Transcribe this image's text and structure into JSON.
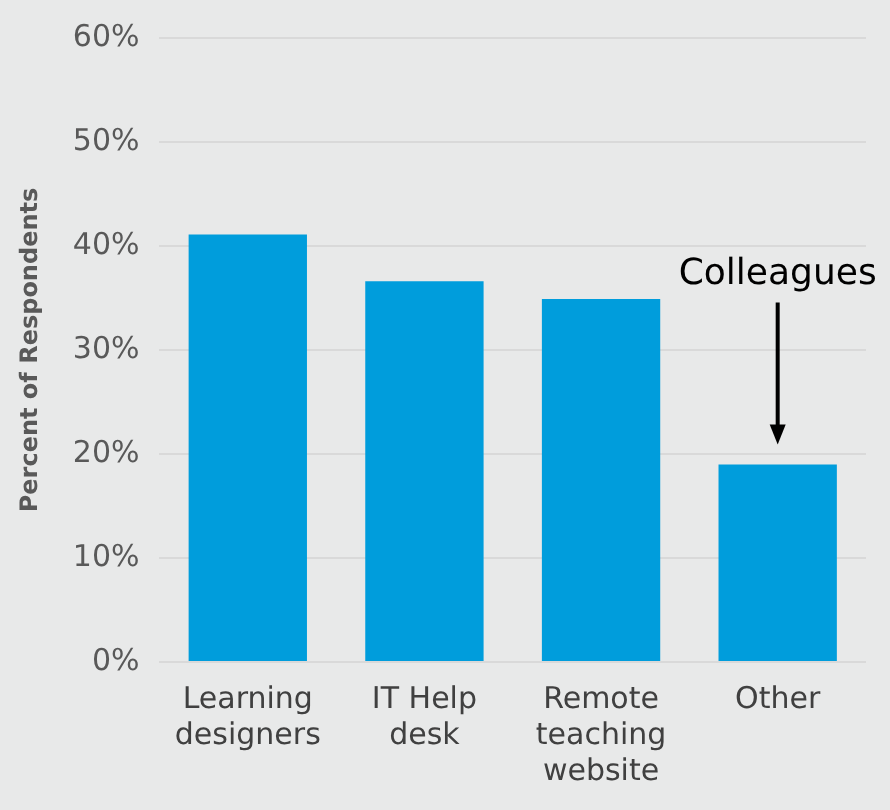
{
  "chart_data": {
    "type": "bar",
    "ylabel": "Percent of Respondents",
    "categories": [
      "Learning designers",
      "IT Help desk",
      "Remote teaching website",
      "Other"
    ],
    "values": [
      41.1,
      36.6,
      34.9,
      19.0
    ],
    "color": "#009ddc",
    "ylim": [
      0,
      60
    ],
    "yticks": [
      {
        "value": 0,
        "label": "0%"
      },
      {
        "value": 10,
        "label": "10%"
      },
      {
        "value": 20,
        "label": "20%"
      },
      {
        "value": 30,
        "label": "30%"
      },
      {
        "value": 40,
        "label": "40%"
      },
      {
        "value": 50,
        "label": "50%"
      },
      {
        "value": 60,
        "label": "60%"
      }
    ],
    "grid": "y",
    "legend": false,
    "annotations": [
      "Colleagues"
    ]
  }
}
